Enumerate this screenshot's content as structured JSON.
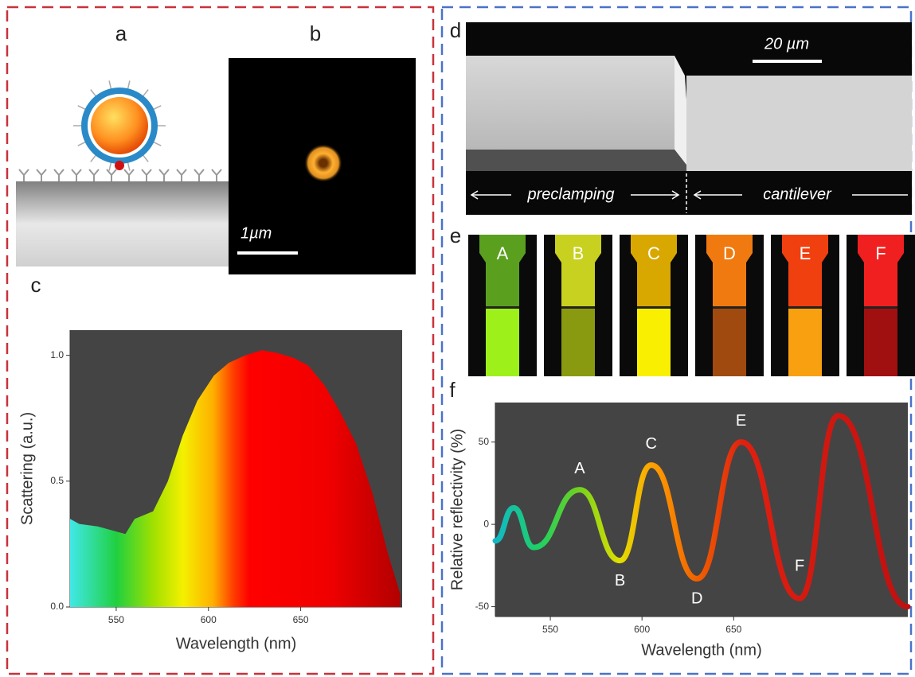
{
  "panels": {
    "a": {
      "label": "a"
    },
    "b": {
      "label": "b",
      "scale_bar": "1µm"
    },
    "c": {
      "label": "c"
    },
    "d": {
      "label": "d",
      "scale_bar": "20 µm",
      "region_left": "preclamping",
      "region_right": "cantilever"
    },
    "e": {
      "label": "e",
      "strips": [
        "A",
        "B",
        "C",
        "D",
        "E",
        "F"
      ]
    },
    "f": {
      "label": "f"
    }
  },
  "chart_data": [
    {
      "type": "area",
      "x_label": "Wavelength (nm)",
      "y_label": "Scattering (a.u.)",
      "x": [
        525,
        530,
        540,
        550,
        555,
        560,
        570,
        578,
        586,
        594,
        603,
        611,
        620,
        629,
        637,
        646,
        654,
        663,
        671,
        680,
        689,
        697,
        704
      ],
      "values": [
        0.35,
        0.33,
        0.32,
        0.3,
        0.29,
        0.35,
        0.38,
        0.5,
        0.68,
        0.82,
        0.92,
        0.97,
        1.0,
        1.02,
        1.01,
        0.99,
        0.96,
        0.88,
        0.78,
        0.65,
        0.45,
        0.22,
        0.05
      ],
      "xlim": [
        525,
        705
      ],
      "ylim": [
        0,
        1.1
      ],
      "xticks": [
        550,
        600,
        650
      ],
      "yticks": [
        {
          "value": 0,
          "label": "0.0"
        },
        0.5,
        {
          "value": 1,
          "label": "1.0"
        }
      ]
    },
    {
      "type": "line",
      "x_label": "Wavelength (nm)",
      "y_label": "Relative reflectivity (%)",
      "x": [
        520,
        530,
        541,
        566,
        588,
        605,
        630,
        654,
        686,
        707,
        745
      ],
      "values": [
        -10,
        10,
        -14,
        21,
        -22,
        36,
        -33,
        50,
        -45,
        66,
        -50
      ],
      "annotations": [
        "A",
        "B",
        "C",
        "D",
        "E",
        "F"
      ],
      "xlim": [
        520,
        745
      ],
      "ylim": [
        -56,
        74
      ],
      "xticks": [
        550,
        600,
        650
      ],
      "yticks": [
        -50,
        0,
        50
      ]
    }
  ]
}
